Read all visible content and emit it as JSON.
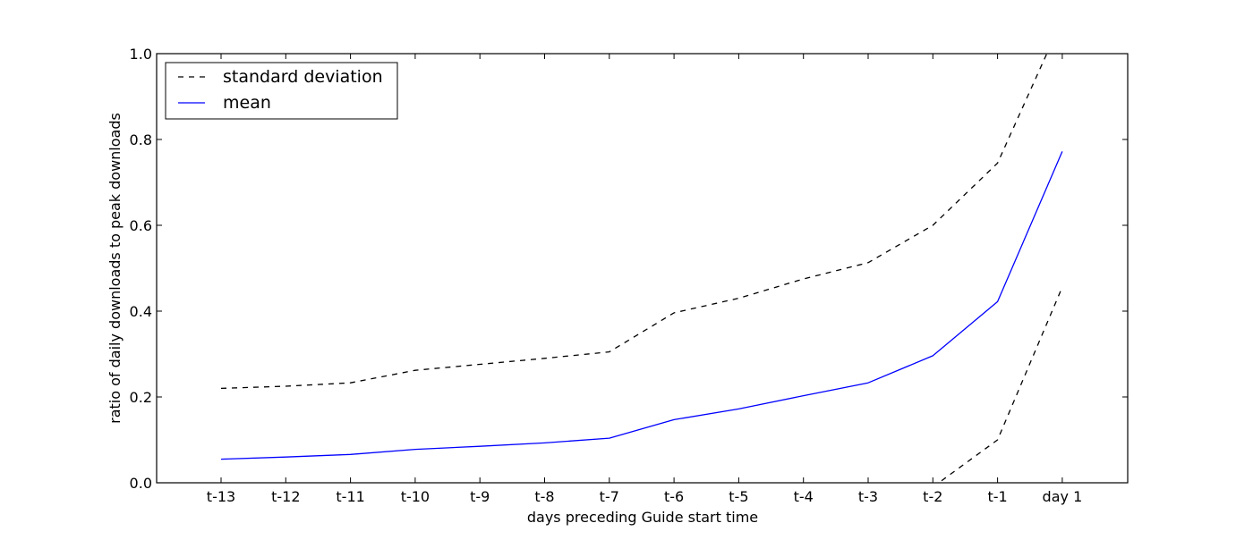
{
  "chart_data": {
    "type": "line",
    "title": "",
    "xlabel": "days preceding Guide start time",
    "ylabel": "ratio of daily downloads to peak downloads",
    "categories": [
      "t-13",
      "t-12",
      "t-11",
      "t-10",
      "t-9",
      "t-8",
      "t-7",
      "t-6",
      "t-5",
      "t-4",
      "t-3",
      "t-2",
      "t-1",
      "day 1"
    ],
    "ylim": [
      0,
      1.0
    ],
    "yticks": [
      "0.0",
      "0.2",
      "0.4",
      "0.6",
      "0.8",
      "1.0"
    ],
    "legend_position": "top-left",
    "grid": false,
    "series": [
      {
        "name": "standard deviation",
        "style": "dashed",
        "color": "#000000",
        "values": [
          0.22,
          0.225,
          0.233,
          0.262,
          0.276,
          0.29,
          0.305,
          0.396,
          0.43,
          0.475,
          0.513,
          0.6,
          0.745,
          1.08
        ]
      },
      {
        "name": "mean",
        "style": "solid",
        "color": "#0000ff",
        "values": [
          0.055,
          0.06,
          0.066,
          0.078,
          0.085,
          0.093,
          0.104,
          0.147,
          0.172,
          0.203,
          0.233,
          0.296,
          0.422,
          0.772
        ]
      },
      {
        "name": "",
        "style": "dashed",
        "color": "#000000",
        "values": [
          null,
          null,
          null,
          null,
          null,
          null,
          null,
          null,
          null,
          null,
          null,
          -0.01,
          0.1,
          0.456
        ]
      }
    ]
  }
}
